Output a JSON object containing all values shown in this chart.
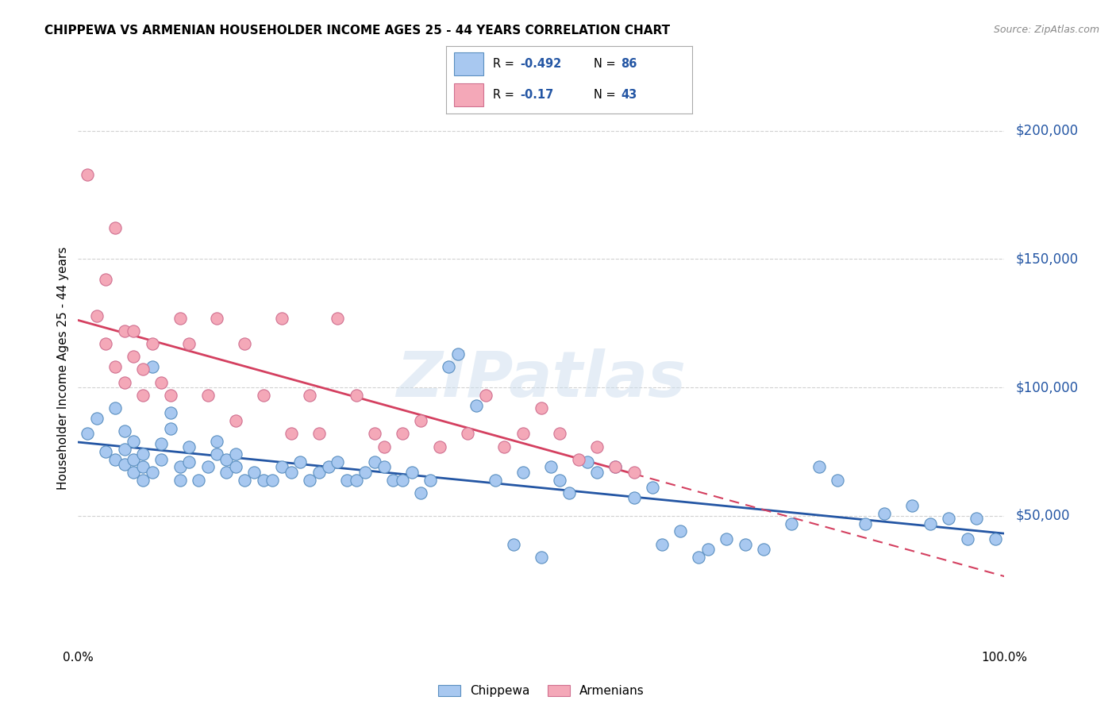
{
  "title": "CHIPPEWA VS ARMENIAN HOUSEHOLDER INCOME AGES 25 - 44 YEARS CORRELATION CHART",
  "source": "Source: ZipAtlas.com",
  "ylabel": "Householder Income Ages 25 - 44 years",
  "ytick_labels": [
    "$50,000",
    "$100,000",
    "$150,000",
    "$200,000"
  ],
  "ytick_values": [
    50000,
    100000,
    150000,
    200000
  ],
  "ylim": [
    0,
    215000
  ],
  "xlim": [
    0.0,
    1.0
  ],
  "chippewa_R": -0.492,
  "chippewa_N": 86,
  "armenian_R": -0.17,
  "armenian_N": 43,
  "chippewa_color": "#a8c8f0",
  "armenian_color": "#f4a8b8",
  "chippewa_edge_color": "#5a8fc0",
  "armenian_edge_color": "#d07090",
  "chippewa_line_color": "#2456a4",
  "armenian_line_color": "#d44060",
  "watermark": "ZIPatlas",
  "background_color": "#ffffff",
  "grid_color": "#cccccc",
  "legend_text_color": "#2456a4",
  "chippewa_x": [
    0.01,
    0.02,
    0.03,
    0.04,
    0.04,
    0.05,
    0.05,
    0.05,
    0.06,
    0.06,
    0.06,
    0.07,
    0.07,
    0.07,
    0.08,
    0.08,
    0.09,
    0.09,
    0.1,
    0.1,
    0.11,
    0.11,
    0.12,
    0.12,
    0.13,
    0.14,
    0.15,
    0.15,
    0.16,
    0.16,
    0.17,
    0.17,
    0.18,
    0.19,
    0.2,
    0.21,
    0.22,
    0.23,
    0.24,
    0.25,
    0.26,
    0.27,
    0.28,
    0.29,
    0.3,
    0.31,
    0.32,
    0.33,
    0.34,
    0.35,
    0.36,
    0.37,
    0.38,
    0.4,
    0.41,
    0.43,
    0.45,
    0.47,
    0.48,
    0.5,
    0.51,
    0.52,
    0.53,
    0.55,
    0.56,
    0.58,
    0.6,
    0.62,
    0.63,
    0.65,
    0.67,
    0.68,
    0.7,
    0.72,
    0.74,
    0.77,
    0.8,
    0.82,
    0.85,
    0.87,
    0.9,
    0.92,
    0.94,
    0.96,
    0.97,
    0.99
  ],
  "chippewa_y": [
    82000,
    88000,
    75000,
    72000,
    92000,
    70000,
    76000,
    83000,
    67000,
    72000,
    79000,
    64000,
    69000,
    74000,
    108000,
    67000,
    72000,
    78000,
    84000,
    90000,
    64000,
    69000,
    71000,
    77000,
    64000,
    69000,
    79000,
    74000,
    67000,
    72000,
    69000,
    74000,
    64000,
    67000,
    64000,
    64000,
    69000,
    67000,
    71000,
    64000,
    67000,
    69000,
    71000,
    64000,
    64000,
    67000,
    71000,
    69000,
    64000,
    64000,
    67000,
    59000,
    64000,
    108000,
    113000,
    93000,
    64000,
    39000,
    67000,
    34000,
    69000,
    64000,
    59000,
    71000,
    67000,
    69000,
    57000,
    61000,
    39000,
    44000,
    34000,
    37000,
    41000,
    39000,
    37000,
    47000,
    69000,
    64000,
    47000,
    51000,
    54000,
    47000,
    49000,
    41000,
    49000,
    41000
  ],
  "armenian_x": [
    0.01,
    0.02,
    0.03,
    0.03,
    0.04,
    0.04,
    0.05,
    0.05,
    0.06,
    0.06,
    0.07,
    0.07,
    0.08,
    0.09,
    0.1,
    0.11,
    0.12,
    0.14,
    0.15,
    0.17,
    0.18,
    0.2,
    0.22,
    0.23,
    0.25,
    0.26,
    0.28,
    0.3,
    0.32,
    0.33,
    0.35,
    0.37,
    0.39,
    0.42,
    0.44,
    0.46,
    0.48,
    0.5,
    0.52,
    0.54,
    0.56,
    0.58,
    0.6
  ],
  "armenian_y": [
    183000,
    128000,
    142000,
    117000,
    162000,
    108000,
    122000,
    102000,
    112000,
    122000,
    97000,
    107000,
    117000,
    102000,
    97000,
    127000,
    117000,
    97000,
    127000,
    87000,
    117000,
    97000,
    127000,
    82000,
    97000,
    82000,
    127000,
    97000,
    82000,
    77000,
    82000,
    87000,
    77000,
    82000,
    97000,
    77000,
    82000,
    92000,
    82000,
    72000,
    77000,
    69000,
    67000
  ]
}
